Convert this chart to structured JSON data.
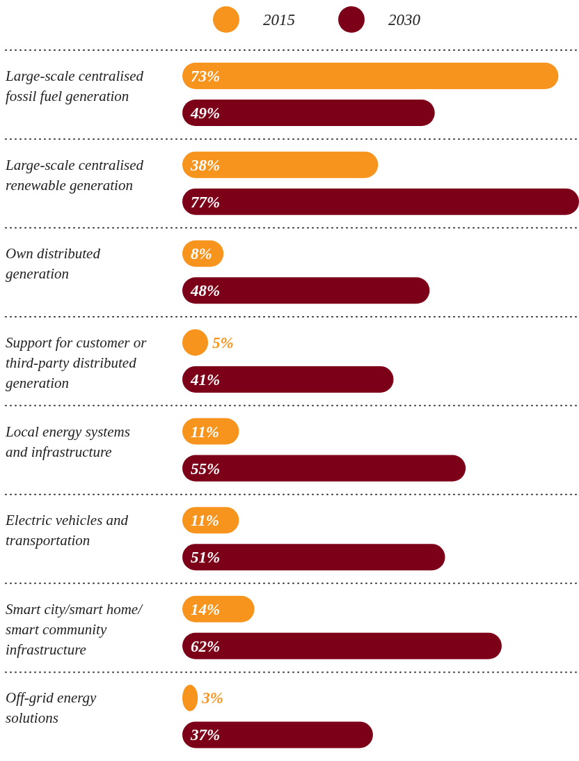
{
  "chart_data": {
    "type": "bar",
    "orientation": "horizontal",
    "legend": "top",
    "categories": [
      "Large-scale centralised fossil fuel generation",
      "Large-scale centralised renewable generation",
      "Own distributed generation",
      "Support for customer or third-party distributed generation",
      "Local energy systems and infrastructure",
      "Electric vehicles and transportation",
      "Smart city/smart home/ smart community infrastructure",
      "Off-grid energy solutions"
    ],
    "series": [
      {
        "name": "2015",
        "color": "#f7941d",
        "values": [
          73,
          38,
          8,
          5,
          11,
          11,
          14,
          3
        ],
        "value_labels": [
          "73%",
          "38%",
          "8%",
          "5%",
          "11%",
          "11%",
          "14%",
          "3%"
        ]
      },
      {
        "name": "2030",
        "color": "#7d0019",
        "values": [
          49,
          77,
          48,
          41,
          55,
          51,
          62,
          37
        ],
        "value_labels": [
          "49%",
          "77%",
          "48%",
          "41%",
          "55%",
          "51%",
          "62%",
          "37%"
        ]
      }
    ]
  }
}
